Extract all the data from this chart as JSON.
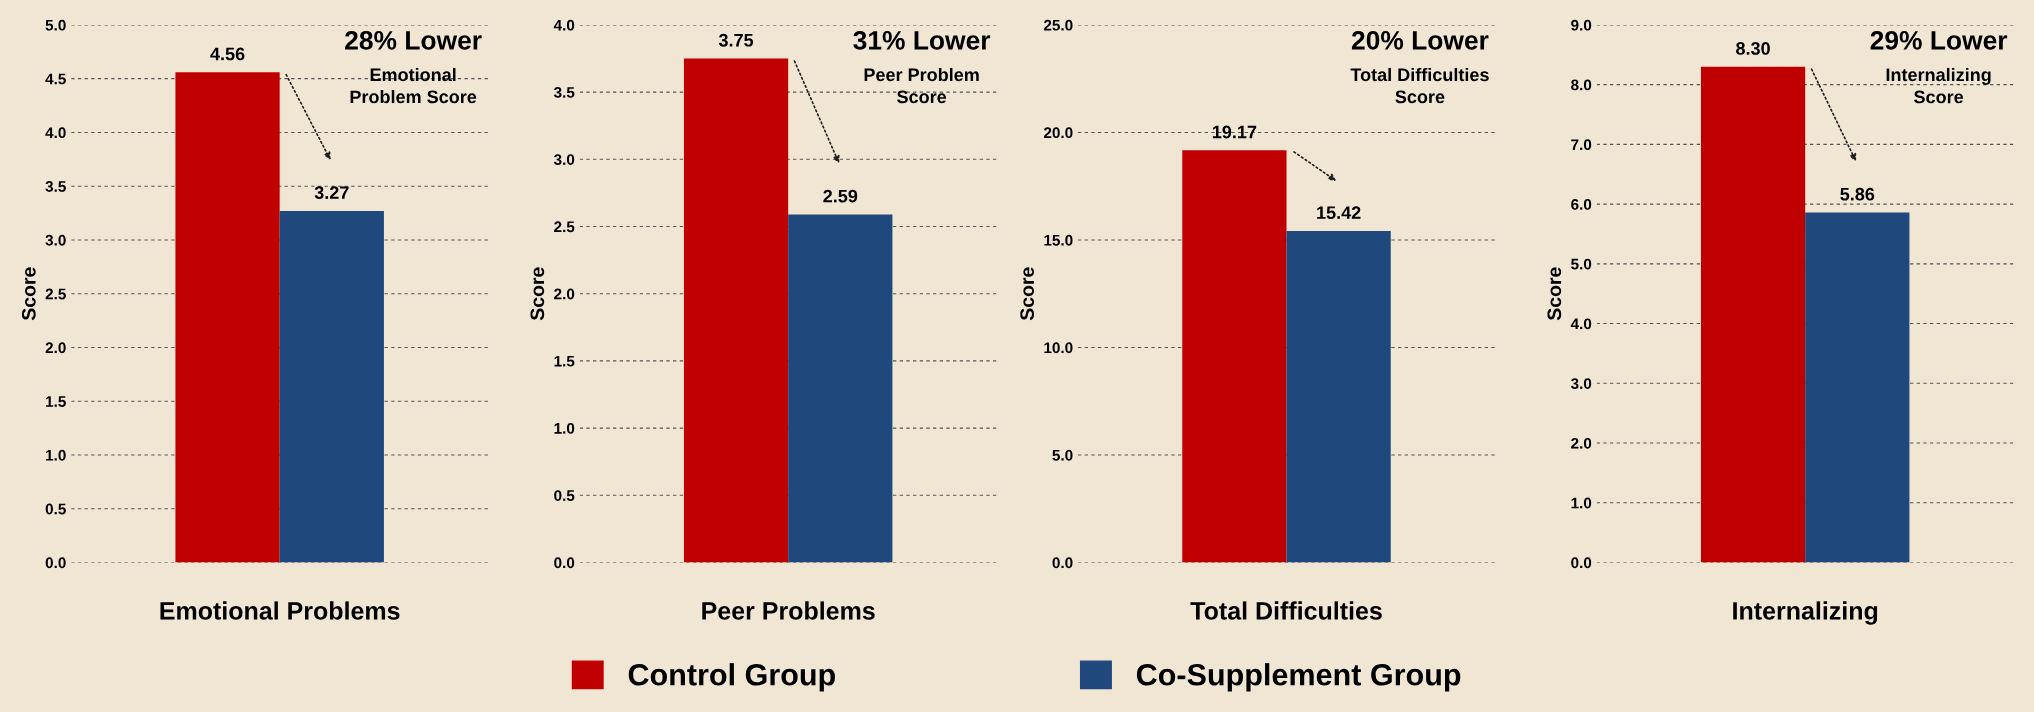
{
  "chart_data": [
    {
      "type": "bar",
      "categories": [
        "Emotional Problems"
      ],
      "ylabel": "Score",
      "ylim": [
        0,
        5
      ],
      "yticks": [
        {
          "value": 0,
          "label": "0.0"
        },
        {
          "value": 0.5,
          "label": "0.5"
        },
        {
          "value": 1,
          "label": "1.0"
        },
        {
          "value": 1.5,
          "label": "1.5"
        },
        {
          "value": 2,
          "label": "2.0"
        },
        {
          "value": 2.5,
          "label": "2.5"
        },
        {
          "value": 3,
          "label": "3.0"
        },
        {
          "value": 3.5,
          "label": "3.5"
        },
        {
          "value": 4,
          "label": "4.0"
        },
        {
          "value": 4.5,
          "label": "4.5"
        },
        {
          "value": 5,
          "label": "5.0"
        }
      ],
      "grid": "y",
      "data_labels": true,
      "legend": "bottom",
      "annotations": [
        "28% Lower",
        "Emotional\nProblem Score"
      ],
      "series": [
        {
          "name": "Control Group",
          "color": "#c00000",
          "values": [
            4.56
          ]
        },
        {
          "name": "Co-Supplement Group",
          "color": "#1f497d",
          "values": [
            3.27
          ]
        }
      ]
    },
    {
      "type": "bar",
      "categories": [
        "Peer Problems"
      ],
      "ylabel": "Score",
      "ylim": [
        0,
        4
      ],
      "yticks": [
        {
          "value": 0,
          "label": "0.0"
        },
        {
          "value": 0.5,
          "label": "0.5"
        },
        {
          "value": 1,
          "label": "1.0"
        },
        {
          "value": 1.5,
          "label": "1.5"
        },
        {
          "value": 2,
          "label": "2.0"
        },
        {
          "value": 2.5,
          "label": "2.5"
        },
        {
          "value": 3,
          "label": "3.0"
        },
        {
          "value": 3.5,
          "label": "3.5"
        },
        {
          "value": 4,
          "label": "4.0"
        }
      ],
      "grid": "y",
      "data_labels": true,
      "annotations": [
        "31% Lower",
        "Peer Problem\nScore"
      ],
      "series": [
        {
          "color": "#c00000",
          "values": [
            3.75
          ]
        },
        {
          "color": "#1f497d",
          "values": [
            2.59
          ]
        }
      ]
    },
    {
      "type": "bar",
      "categories": [
        "Total Difficulties"
      ],
      "ylabel": "Score",
      "ylim": [
        0,
        25
      ],
      "yticks": [
        {
          "value": 0,
          "label": "0.0"
        },
        {
          "value": 5,
          "label": "5.0"
        },
        {
          "value": 10,
          "label": "10.0"
        },
        {
          "value": 15,
          "label": "15.0"
        },
        {
          "value": 20,
          "label": "20.0"
        },
        {
          "value": 25,
          "label": "25.0"
        }
      ],
      "grid": "y",
      "data_labels": true,
      "annotations": [
        "20% Lower",
        "Total Difficulties\nScore"
      ],
      "series": [
        {
          "color": "#c00000",
          "values": [
            19.17
          ]
        },
        {
          "color": "#1f497d",
          "values": [
            15.42
          ]
        }
      ]
    },
    {
      "type": "bar",
      "categories": [
        "Internalizing"
      ],
      "ylabel": "Score",
      "ylim": [
        0,
        9
      ],
      "yticks": [
        {
          "value": 0,
          "label": "0.0"
        },
        {
          "value": 1,
          "label": "1.0"
        },
        {
          "value": 2,
          "label": "2.0"
        },
        {
          "value": 3,
          "label": "3.0"
        },
        {
          "value": 4,
          "label": "4.0"
        },
        {
          "value": 5,
          "label": "5.0"
        },
        {
          "value": 6,
          "label": "6.0"
        },
        {
          "value": 7,
          "label": "7.0"
        },
        {
          "value": 8,
          "label": "8.0"
        },
        {
          "value": 9,
          "label": "9.0"
        }
      ],
      "grid": "y",
      "annotations": [
        "29% Lower",
        "Internalizing\nScore"
      ],
      "series": [
        {
          "color": "#c00000",
          "values": [
            8.3
          ],
          "value_labels": [
            "8.30"
          ]
        },
        {
          "color": "#1f497d",
          "values": [
            5.86
          ],
          "value_labels": [
            "5.86"
          ]
        }
      ]
    }
  ]
}
